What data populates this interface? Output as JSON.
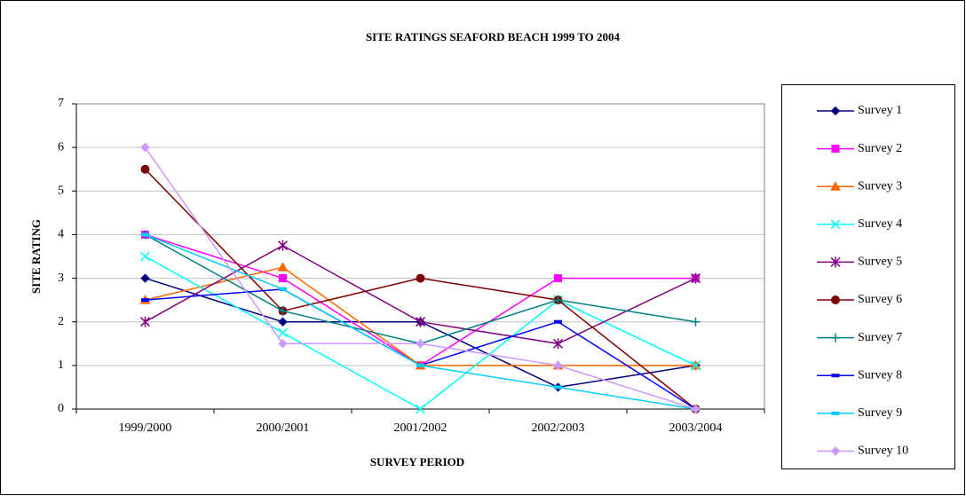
{
  "chart_data": {
    "type": "line",
    "title": "SITE RATINGS SEAFORD BEACH 1999 TO 2004",
    "x_label": "SURVEY PERIOD",
    "y_label": "SITE RATING",
    "categories": [
      "1999/2000",
      "2000/2001",
      "2001/2002",
      "2002/2003",
      "2003/2004"
    ],
    "ylim": [
      0,
      7
    ],
    "yticks": [
      0,
      1,
      2,
      3,
      4,
      5,
      6,
      7
    ],
    "grid": true,
    "legend": "right",
    "series": [
      {
        "name": "Survey 1",
        "color": "#000080",
        "marker": "diamond",
        "values": [
          3,
          2,
          2,
          0.5,
          1
        ]
      },
      {
        "name": "Survey 2",
        "color": "#ff00ff",
        "marker": "square",
        "values": [
          4,
          3,
          1,
          3,
          3
        ]
      },
      {
        "name": "Survey 3",
        "color": "#ff6600",
        "marker": "triangle",
        "values": [
          2.5,
          3.25,
          1,
          1,
          1
        ]
      },
      {
        "name": "Survey 4",
        "color": "#00ffff",
        "marker": "x",
        "values": [
          3.5,
          1.75,
          0,
          2.5,
          1
        ]
      },
      {
        "name": "Survey 5",
        "color": "#800080",
        "marker": "star",
        "values": [
          2,
          3.75,
          2,
          1.5,
          3
        ]
      },
      {
        "name": "Survey 6",
        "color": "#800000",
        "marker": "circle",
        "values": [
          5.5,
          2.25,
          3,
          2.5,
          0
        ]
      },
      {
        "name": "Survey 7",
        "color": "#008080",
        "marker": "plus",
        "values": [
          4,
          2.25,
          1.5,
          2.5,
          2
        ]
      },
      {
        "name": "Survey 8",
        "color": "#0000ff",
        "marker": "dash",
        "values": [
          2.5,
          2.75,
          1,
          2,
          0
        ]
      },
      {
        "name": "Survey 9",
        "color": "#00ccff",
        "marker": "dash",
        "values": [
          4,
          2.75,
          1,
          0.5,
          0
        ]
      },
      {
        "name": "Survey 10",
        "color": "#cc99ff",
        "marker": "diamond",
        "values": [
          6,
          1.5,
          1.5,
          1,
          0
        ]
      }
    ]
  }
}
